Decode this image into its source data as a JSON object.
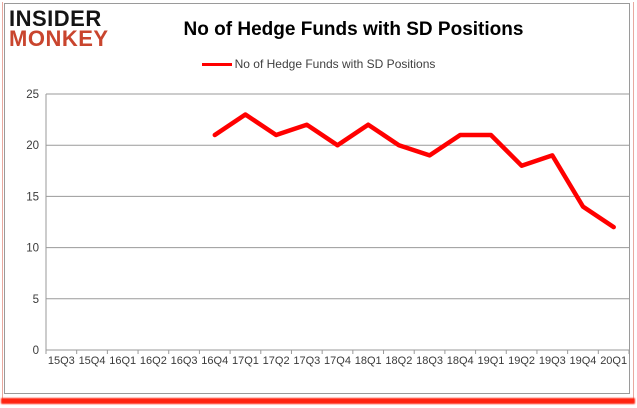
{
  "logo": {
    "line1": "INSIDER",
    "line2": "MONKEY"
  },
  "header": {
    "title": "No of Hedge Funds with SD Positions"
  },
  "legend": {
    "label": "No of Hedge Funds with SD Positions"
  },
  "colors": {
    "series": "#ff0000",
    "gridline": "#9a9a9a",
    "axis_line": "#9a9a9a",
    "axis_text": "#3a3a3a",
    "logo_black": "#141414",
    "logo_red": "#c9452e",
    "frame_red": "#ff2310",
    "frame_pink": "#e9a89f",
    "chart_border": "#9a9a9a"
  },
  "chart_data": {
    "type": "line",
    "title": "No of Hedge Funds with SD Positions",
    "categories": [
      "15Q3",
      "15Q4",
      "16Q1",
      "16Q2",
      "16Q3",
      "16Q4",
      "17Q1",
      "17Q2",
      "17Q3",
      "17Q4",
      "18Q1",
      "18Q2",
      "18Q3",
      "18Q4",
      "19Q1",
      "19Q2",
      "19Q3",
      "19Q4",
      "20Q1"
    ],
    "series": [
      {
        "name": "No of Hedge Funds with SD Positions",
        "color": "#ff0000",
        "values": [
          null,
          null,
          null,
          null,
          null,
          21,
          23,
          21,
          22,
          20,
          22,
          20,
          19,
          21,
          21,
          18,
          19,
          14,
          12
        ]
      }
    ],
    "yticks": [
      0,
      5,
      10,
      15,
      20,
      25
    ],
    "ylim": [
      0,
      25
    ],
    "grid": true,
    "legend_position": "top-center",
    "xlabel": "",
    "ylabel": ""
  }
}
